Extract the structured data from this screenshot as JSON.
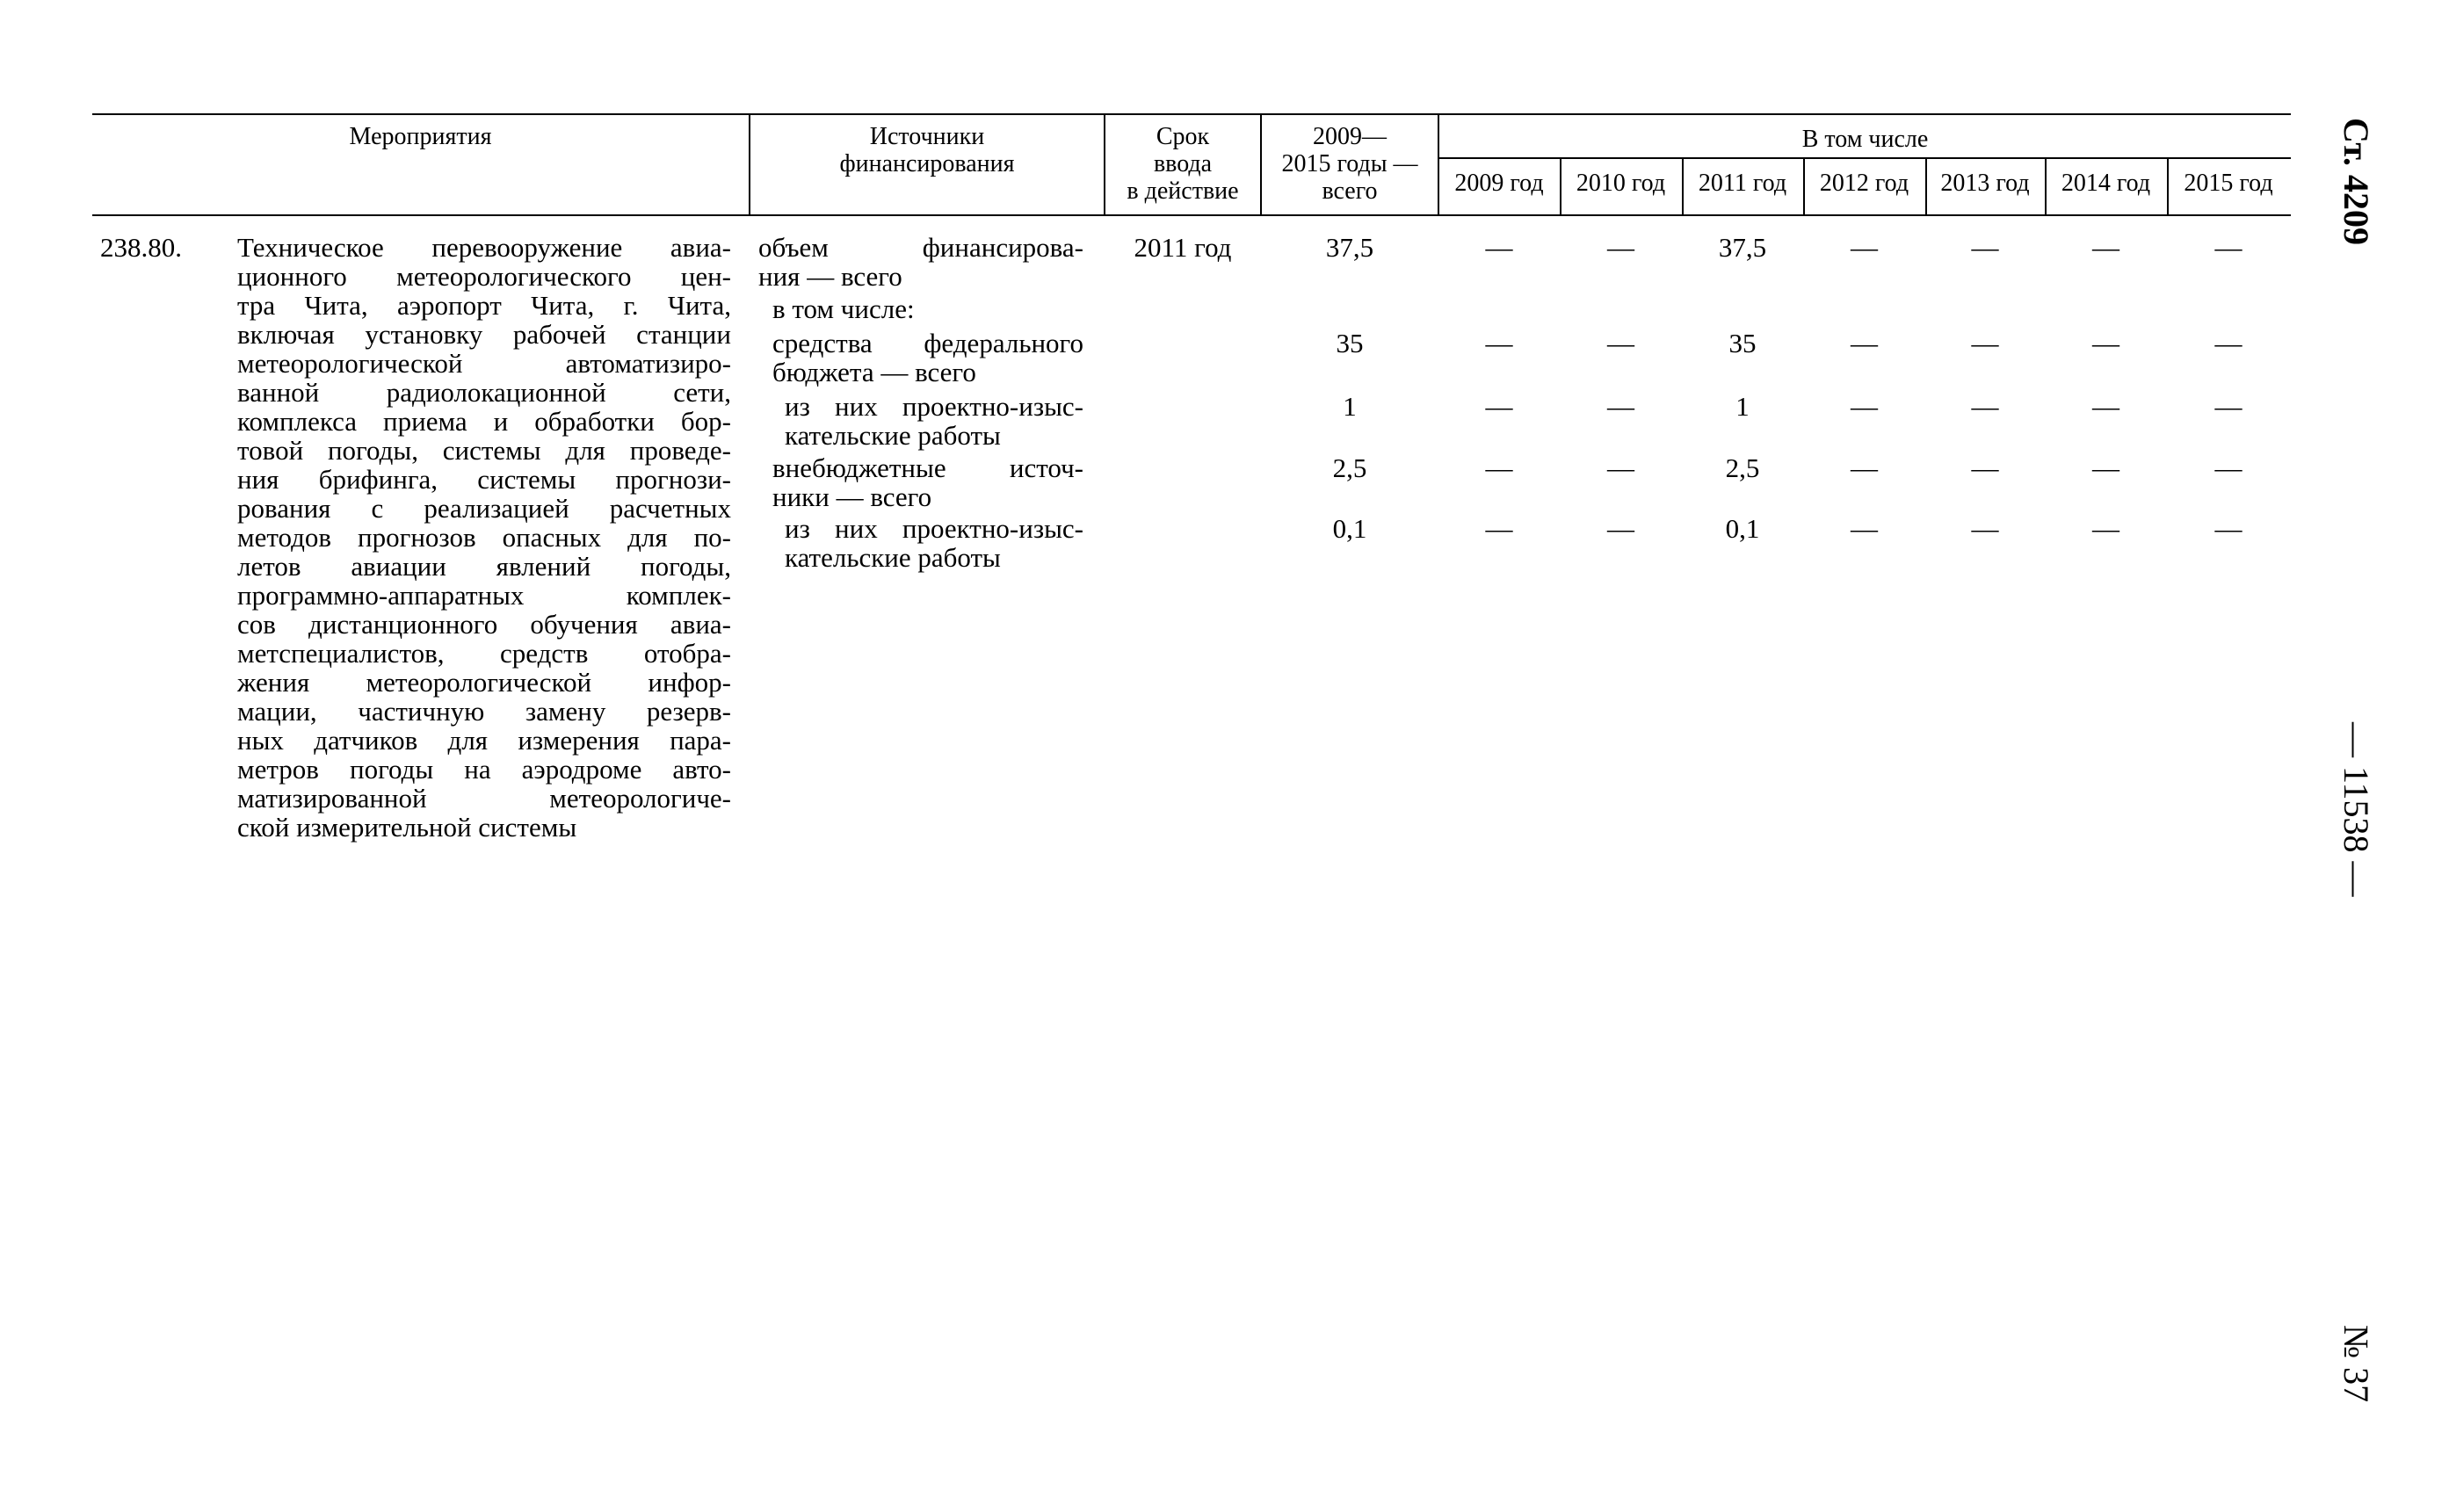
{
  "header": {
    "col_measures": "Мероприятия",
    "col_sources": [
      "Источники",
      "финансирования"
    ],
    "col_deadline": [
      "Срок",
      "ввода",
      "в действие"
    ],
    "col_total": [
      "2009—",
      "2015 годы —",
      "всего"
    ],
    "col_including": "В том числе",
    "years": [
      "2009 год",
      "2010 год",
      "2011 год",
      "2012 год",
      "2013 год",
      "2014 год",
      "2015 год"
    ]
  },
  "row": {
    "number": "238.80.",
    "description_lines": [
      "Техническое перевооружение авиа-",
      "ционного метеорологического цен-",
      "тра Чита, аэропорт Чита, г. Чита,",
      "включая установку рабочей станции",
      "метеорологической автоматизиро-",
      "ванной радиолокационной сети,",
      "комплекса приема и обработки бор-",
      "товой погоды, системы для проведе-",
      "ния брифинга, системы прогнози-",
      "рования с реализацией расчетных",
      "методов прогнозов опасных для по-",
      "летов авиации явлений погоды,",
      "программно-аппаратных комплек-",
      "сов дистанционного обучения авиа-",
      "метспециалистов, средств отобра-",
      "жения метеорологической инфор-",
      "мации, частичную замену резерв-",
      "ных датчиков для измерения пара-",
      "метров погоды на аэродроме авто-",
      "матизированной метеорологиче-",
      "ской измерительной системы"
    ],
    "deadline": "2011 год",
    "sources": [
      {
        "lines": [
          "объем финансирова-",
          "ния — всего"
        ],
        "total": "37,5",
        "years": [
          "—",
          "—",
          "37,5",
          "—",
          "—",
          "—",
          "—"
        ]
      },
      {
        "lines": [
          "в том числе:"
        ],
        "total": "",
        "years": []
      },
      {
        "lines": [
          "средства федерального",
          "бюджета — всего"
        ],
        "total": "35",
        "years": [
          "—",
          "—",
          "35",
          "—",
          "—",
          "—",
          "—"
        ]
      },
      {
        "lines": [
          "из них проектно-изыс-",
          "кательские работы"
        ],
        "total": "1",
        "years": [
          "—",
          "—",
          "1",
          "—",
          "—",
          "—",
          "—"
        ]
      },
      {
        "lines": [
          "внебюджетные источ-",
          "ники — всего"
        ],
        "total": "2,5",
        "years": [
          "—",
          "—",
          "2,5",
          "—",
          "—",
          "—",
          "—"
        ]
      },
      {
        "lines": [
          "из них проектно-изыс-",
          "кательские работы"
        ],
        "total": "0,1",
        "years": [
          "—",
          "—",
          "0,1",
          "—",
          "—",
          "—",
          "—"
        ]
      }
    ]
  },
  "margin": {
    "article": "Ст. 4209",
    "page": "— 11538 —",
    "issue": "№ 37"
  }
}
